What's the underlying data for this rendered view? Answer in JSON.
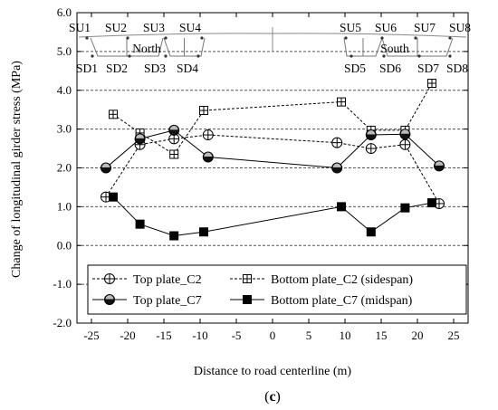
{
  "chart_data": {
    "type": "line",
    "xlabel": "Distance to road centerline (m)",
    "ylabel": "Change of longitudinal girder stress (MPa)",
    "xlim": [
      -27,
      27
    ],
    "ylim": [
      -2.0,
      6.0
    ],
    "xticks": [
      -25,
      -20,
      -15,
      -10,
      -5,
      0,
      5,
      10,
      15,
      20,
      25
    ],
    "yticks": [
      -2.0,
      -1.0,
      0.0,
      1.0,
      2.0,
      3.0,
      4.0,
      5.0,
      6.0
    ],
    "ytick_labels": [
      "-2.0",
      "-1.0",
      "0.0",
      "1.0",
      "2.0",
      "3.0",
      "4.0",
      "5.0",
      "6.0"
    ],
    "grid": "horizontal dashed",
    "legend_position": "bottom",
    "series": [
      {
        "name": "Top plate_C2",
        "marker": "circle-plus",
        "line": "dashed",
        "x": [
          -23,
          -18.3,
          -13.6,
          -8.9,
          8.9,
          13.6,
          18.3,
          23
        ],
        "y": [
          1.25,
          2.6,
          2.75,
          2.85,
          2.65,
          2.5,
          2.6,
          1.08
        ]
      },
      {
        "name": "Bottom plate_C2 (sidespan)",
        "marker": "square-plus",
        "line": "dashed",
        "x": [
          -22,
          -18.3,
          -13.6,
          -9.5,
          9.5,
          13.6,
          18.3,
          22
        ],
        "y": [
          3.38,
          2.9,
          2.35,
          3.48,
          3.7,
          2.97,
          2.97,
          4.18
        ]
      },
      {
        "name": "Top plate_C7",
        "marker": "half-filled-circle",
        "line": "solid",
        "x": [
          -23,
          -18.3,
          -13.6,
          -8.9,
          8.9,
          13.6,
          18.3,
          23
        ],
        "y": [
          2.0,
          2.75,
          2.97,
          2.28,
          2.0,
          2.85,
          2.87,
          2.05
        ]
      },
      {
        "name": "Bottom plate_C7 (midspan)",
        "marker": "filled-square",
        "line": "solid",
        "x": [
          -22,
          -18.3,
          -13.6,
          -9.5,
          9.5,
          13.6,
          18.3,
          22
        ],
        "y": [
          1.25,
          0.55,
          0.25,
          0.35,
          1.0,
          0.35,
          0.97,
          1.1
        ]
      }
    ],
    "inset": {
      "north_label": "North",
      "south_label": "South",
      "top_labels": [
        "SU1",
        "SU2",
        "SU3",
        "SU4",
        "SU5",
        "SU6",
        "SU7",
        "SU8"
      ],
      "bottom_labels": [
        "SD1",
        "SD2",
        "SD3",
        "SD4",
        "SD5",
        "SD6",
        "SD7",
        "SD8"
      ]
    },
    "panel_label_open": "(",
    "panel_label_letter": "c",
    "panel_label_close": ")"
  }
}
